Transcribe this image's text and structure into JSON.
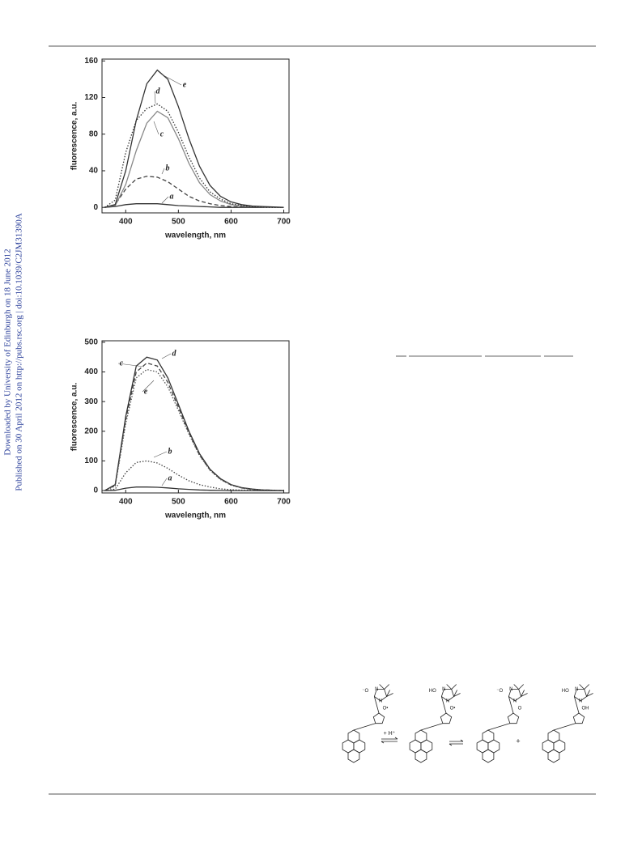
{
  "sidebar": {
    "line1": "Downloaded by University of Edinburgh on 18 June 2012",
    "line2": "Published on 30 April 2012 on http://pubs.rsc.org | doi:10.1039/C2JM31390A"
  },
  "chart_data": [
    {
      "type": "line",
      "xlabel": "wavelength, nm",
      "ylabel": "fluorescence, a.u.",
      "xlim": [
        355,
        710
      ],
      "ylim": [
        -6,
        162
      ],
      "xticks": [
        400,
        500,
        600,
        700
      ],
      "yticks": [
        0,
        40,
        80,
        120,
        160
      ],
      "x": [
        360,
        380,
        400,
        420,
        440,
        460,
        480,
        500,
        520,
        540,
        560,
        580,
        600,
        620,
        640,
        660,
        680,
        700
      ],
      "series": [
        {
          "name": "a",
          "color": "#333333",
          "style": "solid",
          "values": [
            0,
            1,
            3,
            4,
            4,
            4,
            3,
            2,
            1.5,
            1,
            0.5,
            0,
            0,
            0,
            0,
            0,
            0,
            0
          ]
        },
        {
          "name": "b",
          "color": "#444444",
          "style": "dashed",
          "values": [
            0,
            3,
            20,
            31,
            34,
            33,
            28,
            20,
            12,
            7,
            4,
            2,
            1,
            0.5,
            0,
            0,
            0,
            0
          ]
        },
        {
          "name": "c",
          "color": "#888888",
          "style": "solid",
          "values": [
            0,
            2,
            25,
            62,
            92,
            105,
            98,
            75,
            48,
            27,
            14,
            7,
            3,
            1.5,
            1,
            0.5,
            0,
            0
          ]
        },
        {
          "name": "d",
          "color": "#333333",
          "style": "dotted",
          "values": [
            0,
            8,
            60,
            95,
            108,
            113,
            105,
            82,
            55,
            32,
            17,
            9,
            4,
            2,
            1,
            0.5,
            0,
            0
          ]
        },
        {
          "name": "e",
          "color": "#333333",
          "style": "solid",
          "values": [
            0,
            3,
            40,
            95,
            135,
            150,
            140,
            110,
            75,
            45,
            24,
            12,
            6,
            3,
            1.5,
            1,
            0.5,
            0
          ]
        }
      ]
    },
    {
      "type": "line",
      "xlabel": "wavelength, nm",
      "ylabel": "fluorescence, a.u.",
      "xlim": [
        355,
        710
      ],
      "ylim": [
        -8,
        505
      ],
      "xticks": [
        400,
        500,
        600,
        700
      ],
      "yticks": [
        0,
        100,
        200,
        300,
        400,
        500
      ],
      "x": [
        360,
        380,
        400,
        420,
        440,
        460,
        480,
        500,
        520,
        540,
        560,
        580,
        600,
        620,
        640,
        660,
        680,
        700
      ],
      "series": [
        {
          "name": "a",
          "color": "#333333",
          "style": "solid",
          "values": [
            0,
            1,
            8,
            12,
            12,
            11,
            9,
            6,
            4,
            2,
            1,
            0.5,
            0,
            0,
            0,
            0,
            0,
            0
          ]
        },
        {
          "name": "b",
          "color": "#444444",
          "style": "dotted",
          "values": [
            0,
            5,
            60,
            95,
            100,
            93,
            75,
            52,
            33,
            20,
            12,
            6,
            3,
            1.5,
            1,
            0,
            0,
            0
          ]
        },
        {
          "name": "c",
          "color": "#444444",
          "style": "dashed",
          "values": [
            0,
            18,
            240,
            400,
            430,
            420,
            365,
            280,
            195,
            120,
            70,
            38,
            19,
            9,
            4,
            2,
            1,
            0
          ]
        },
        {
          "name": "d",
          "color": "#333333",
          "style": "solid",
          "values": [
            0,
            20,
            250,
            420,
            450,
            440,
            380,
            290,
            200,
            125,
            72,
            40,
            20,
            10,
            5,
            2,
            1,
            0
          ]
        },
        {
          "name": "e",
          "color": "#555555",
          "style": "dotted",
          "values": [
            0,
            15,
            225,
            380,
            408,
            400,
            350,
            270,
            190,
            118,
            68,
            37,
            18,
            9,
            4,
            2,
            1,
            0
          ]
        }
      ]
    }
  ],
  "scheme": {
    "plus_h": "+ H⁺",
    "plus": "+",
    "molecules": [
      {
        "labels": [
          "⁻O",
          "N",
          "N",
          "O•"
        ]
      },
      {
        "labels": [
          "HO",
          "N",
          "N",
          "O•"
        ]
      },
      {
        "labels": [
          "⁻O",
          "N",
          "N",
          "O"
        ]
      },
      {
        "labels": [
          "HO",
          "N",
          "N",
          "OH"
        ]
      }
    ]
  }
}
